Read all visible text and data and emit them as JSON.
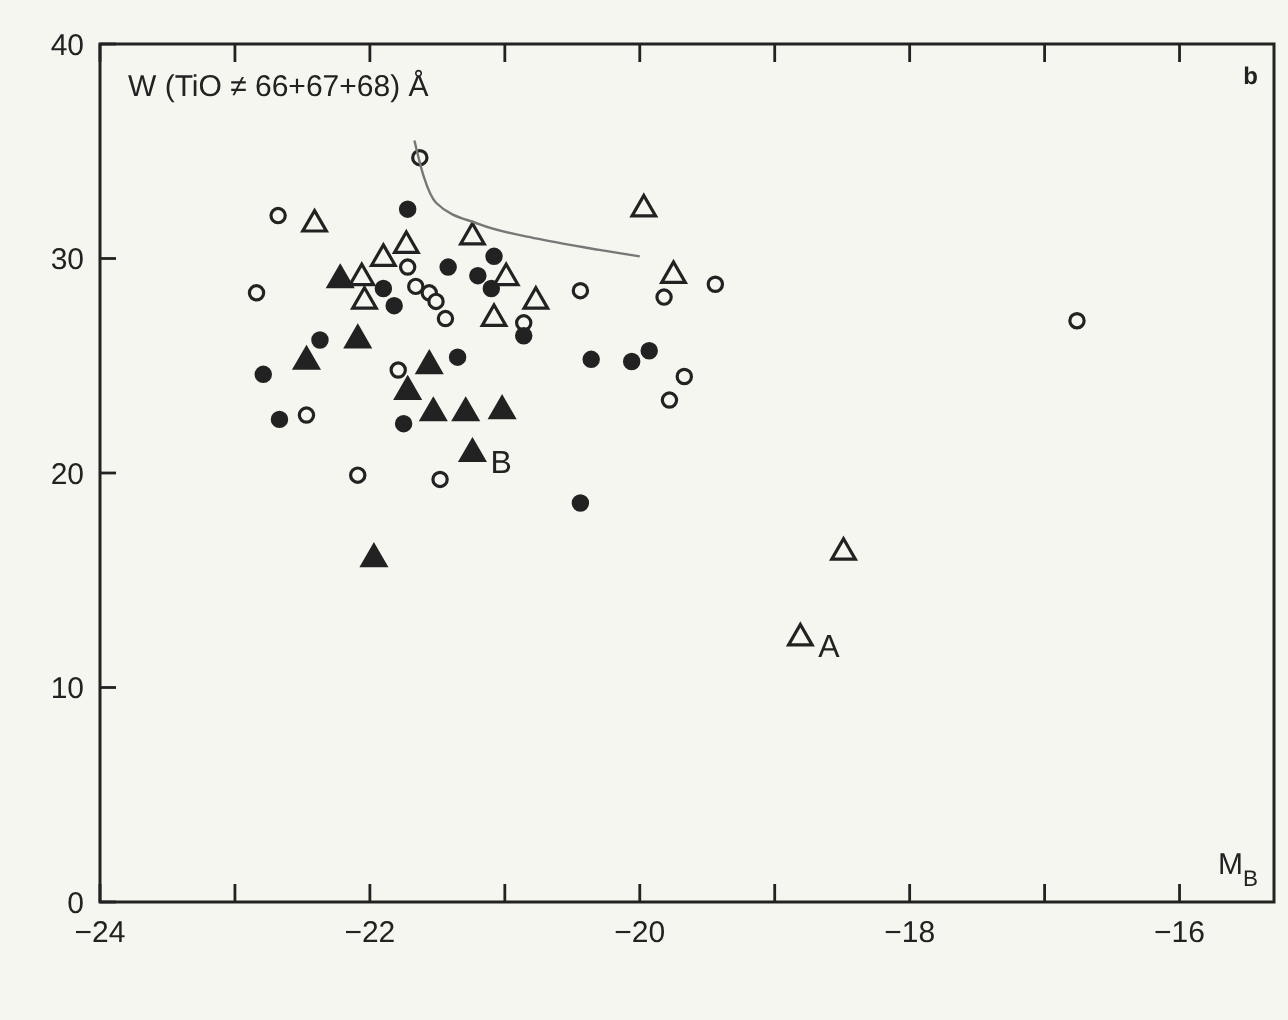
{
  "chart_data": {
    "type": "scatter",
    "title": "W (TiO ≠ 66+67+68) Å",
    "xlabel": "M$_{B}$",
    "annotations": [
      "b",
      {
        "text": "A",
        "x": -18.81,
        "y": 12.3
      },
      {
        "text": "B",
        "x": -21.24,
        "y": 20.9
      }
    ],
    "xlim": [
      -24,
      -15.3
    ],
    "ylim": [
      0,
      40
    ],
    "xticks": [
      -24,
      {
        "value": -23,
        "label": null
      },
      -22,
      {
        "value": -21,
        "label": null
      },
      -20,
      {
        "value": -19,
        "label": null
      },
      -18,
      {
        "value": -17,
        "label": null
      },
      -16
    ],
    "yticks": [
      0,
      10,
      20,
      30,
      40
    ],
    "grid": false,
    "series": [
      {
        "marker": "circle-open",
        "color": "#222222",
        "x": [
          -21.63,
          -22.68,
          -22.84,
          -20.44,
          -21.72,
          -21.66,
          -21.56,
          -21.51,
          -21.44,
          -20.86,
          -19.82,
          -19.44,
          -19.67,
          -19.78,
          -16.76,
          -21.79,
          -22.47,
          -22.09,
          -21.48
        ],
        "values": [
          34.7,
          32.0,
          28.4,
          28.5,
          29.6,
          28.7,
          28.4,
          28.0,
          27.2,
          27.0,
          28.2,
          28.8,
          24.5,
          23.4,
          27.1,
          24.8,
          22.7,
          19.9,
          19.7
        ]
      },
      {
        "marker": "circle",
        "color": "#222222",
        "x": [
          -21.72,
          -21.42,
          -21.2,
          -21.08,
          -21.1,
          -21.9,
          -21.82,
          -22.37,
          -20.86,
          -22.79,
          -22.67,
          -21.35,
          -21.75,
          -20.44,
          -20.36,
          -20.06,
          -19.93
        ],
        "values": [
          32.3,
          29.6,
          29.2,
          30.1,
          28.6,
          28.6,
          27.8,
          26.2,
          26.4,
          24.6,
          22.5,
          25.4,
          22.3,
          18.6,
          25.3,
          25.2,
          25.7
        ]
      },
      {
        "marker": "triangle",
        "color": "#222222",
        "x": [
          -22.22,
          -22.09,
          -22.47,
          -21.56,
          -21.72,
          -21.53,
          -21.29,
          -21.02,
          -21.24,
          -21.97
        ],
        "values": [
          29.0,
          26.2,
          25.2,
          25.0,
          23.8,
          22.8,
          22.8,
          22.9,
          20.9,
          16.0
        ]
      },
      {
        "marker": "triangle-open",
        "color": "#222222",
        "x": [
          -22.41,
          -21.73,
          -21.24,
          -21.9,
          -22.06,
          -22.04,
          -20.99,
          -20.77,
          -21.08,
          -19.97,
          -19.75,
          -18.49,
          -18.81
        ],
        "values": [
          31.6,
          30.6,
          31.0,
          30.0,
          29.1,
          28.0,
          29.1,
          28.0,
          27.2,
          32.3,
          29.2,
          16.3,
          12.3
        ]
      },
      {
        "type": "line",
        "marker": "none",
        "color": "#777777",
        "x": [
          -21.67,
          -21.6,
          -21.51,
          -21.19,
          -20.74,
          -20.3,
          -20.0
        ],
        "values": [
          35.5,
          33.8,
          32.6,
          31.6,
          30.9,
          30.4,
          30.1
        ]
      }
    ]
  }
}
